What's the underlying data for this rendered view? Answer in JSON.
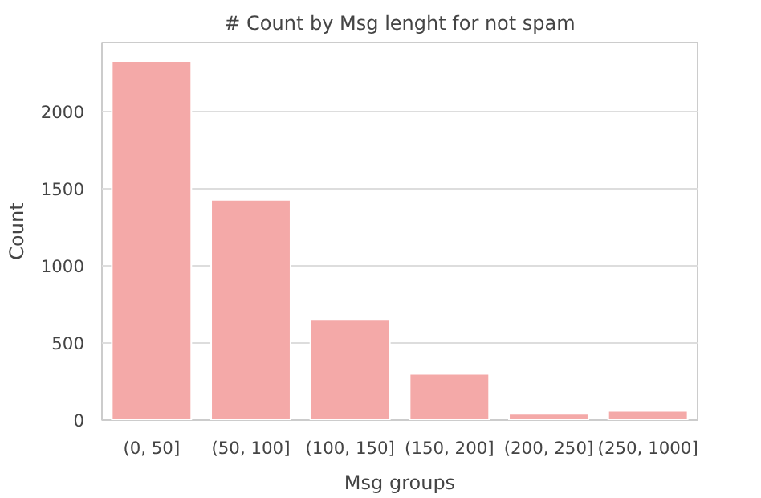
{
  "chart_data": {
    "type": "bar",
    "title": "# Count by Msg lenght for not spam",
    "xlabel": "Msg groups",
    "ylabel": "Count",
    "categories": [
      "(0, 50]",
      "(50, 100]",
      "(100, 150]",
      "(150, 200]",
      "(200, 250]",
      "(250, 1000]"
    ],
    "values": [
      2330,
      1430,
      650,
      300,
      40,
      60
    ],
    "color": "#f4a9a8",
    "ylim": [
      0,
      2450
    ],
    "yticks": [
      0,
      500,
      1000,
      1500,
      2000
    ],
    "grid": "y"
  }
}
